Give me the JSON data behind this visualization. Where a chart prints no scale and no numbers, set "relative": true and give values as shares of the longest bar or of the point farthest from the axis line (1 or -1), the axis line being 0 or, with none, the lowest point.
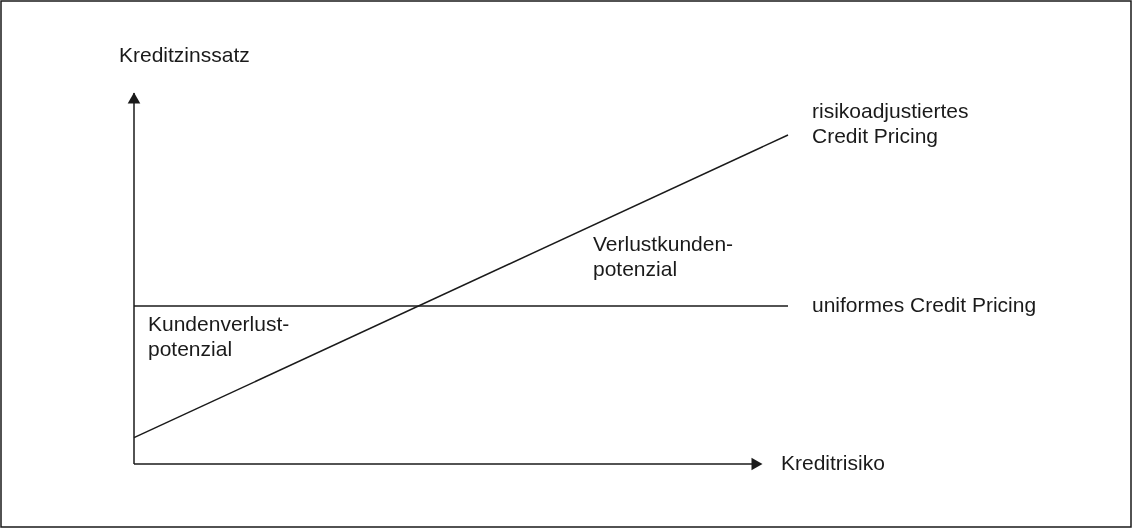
{
  "chart_data": {
    "type": "line",
    "relative": true,
    "xlabel": "Kreditrisiko",
    "ylabel": "Kreditzinssatz",
    "categories": [
      null,
      null
    ],
    "series": [
      {
        "name": "risikoadjustiertes\nCredit Pricing",
        "color": "#1a1a1a",
        "values": [
          0.08,
          1.0
        ]
      },
      {
        "name": "uniformes Credit Pricing",
        "color": "#1a1a1a",
        "values": [
          0.48,
          0.48
        ]
      }
    ],
    "annotations": [
      "Kundenverlust-\npotenzial",
      "Verlustkunden-\npotenzial"
    ],
    "line_style": "solid",
    "marker": "none"
  }
}
